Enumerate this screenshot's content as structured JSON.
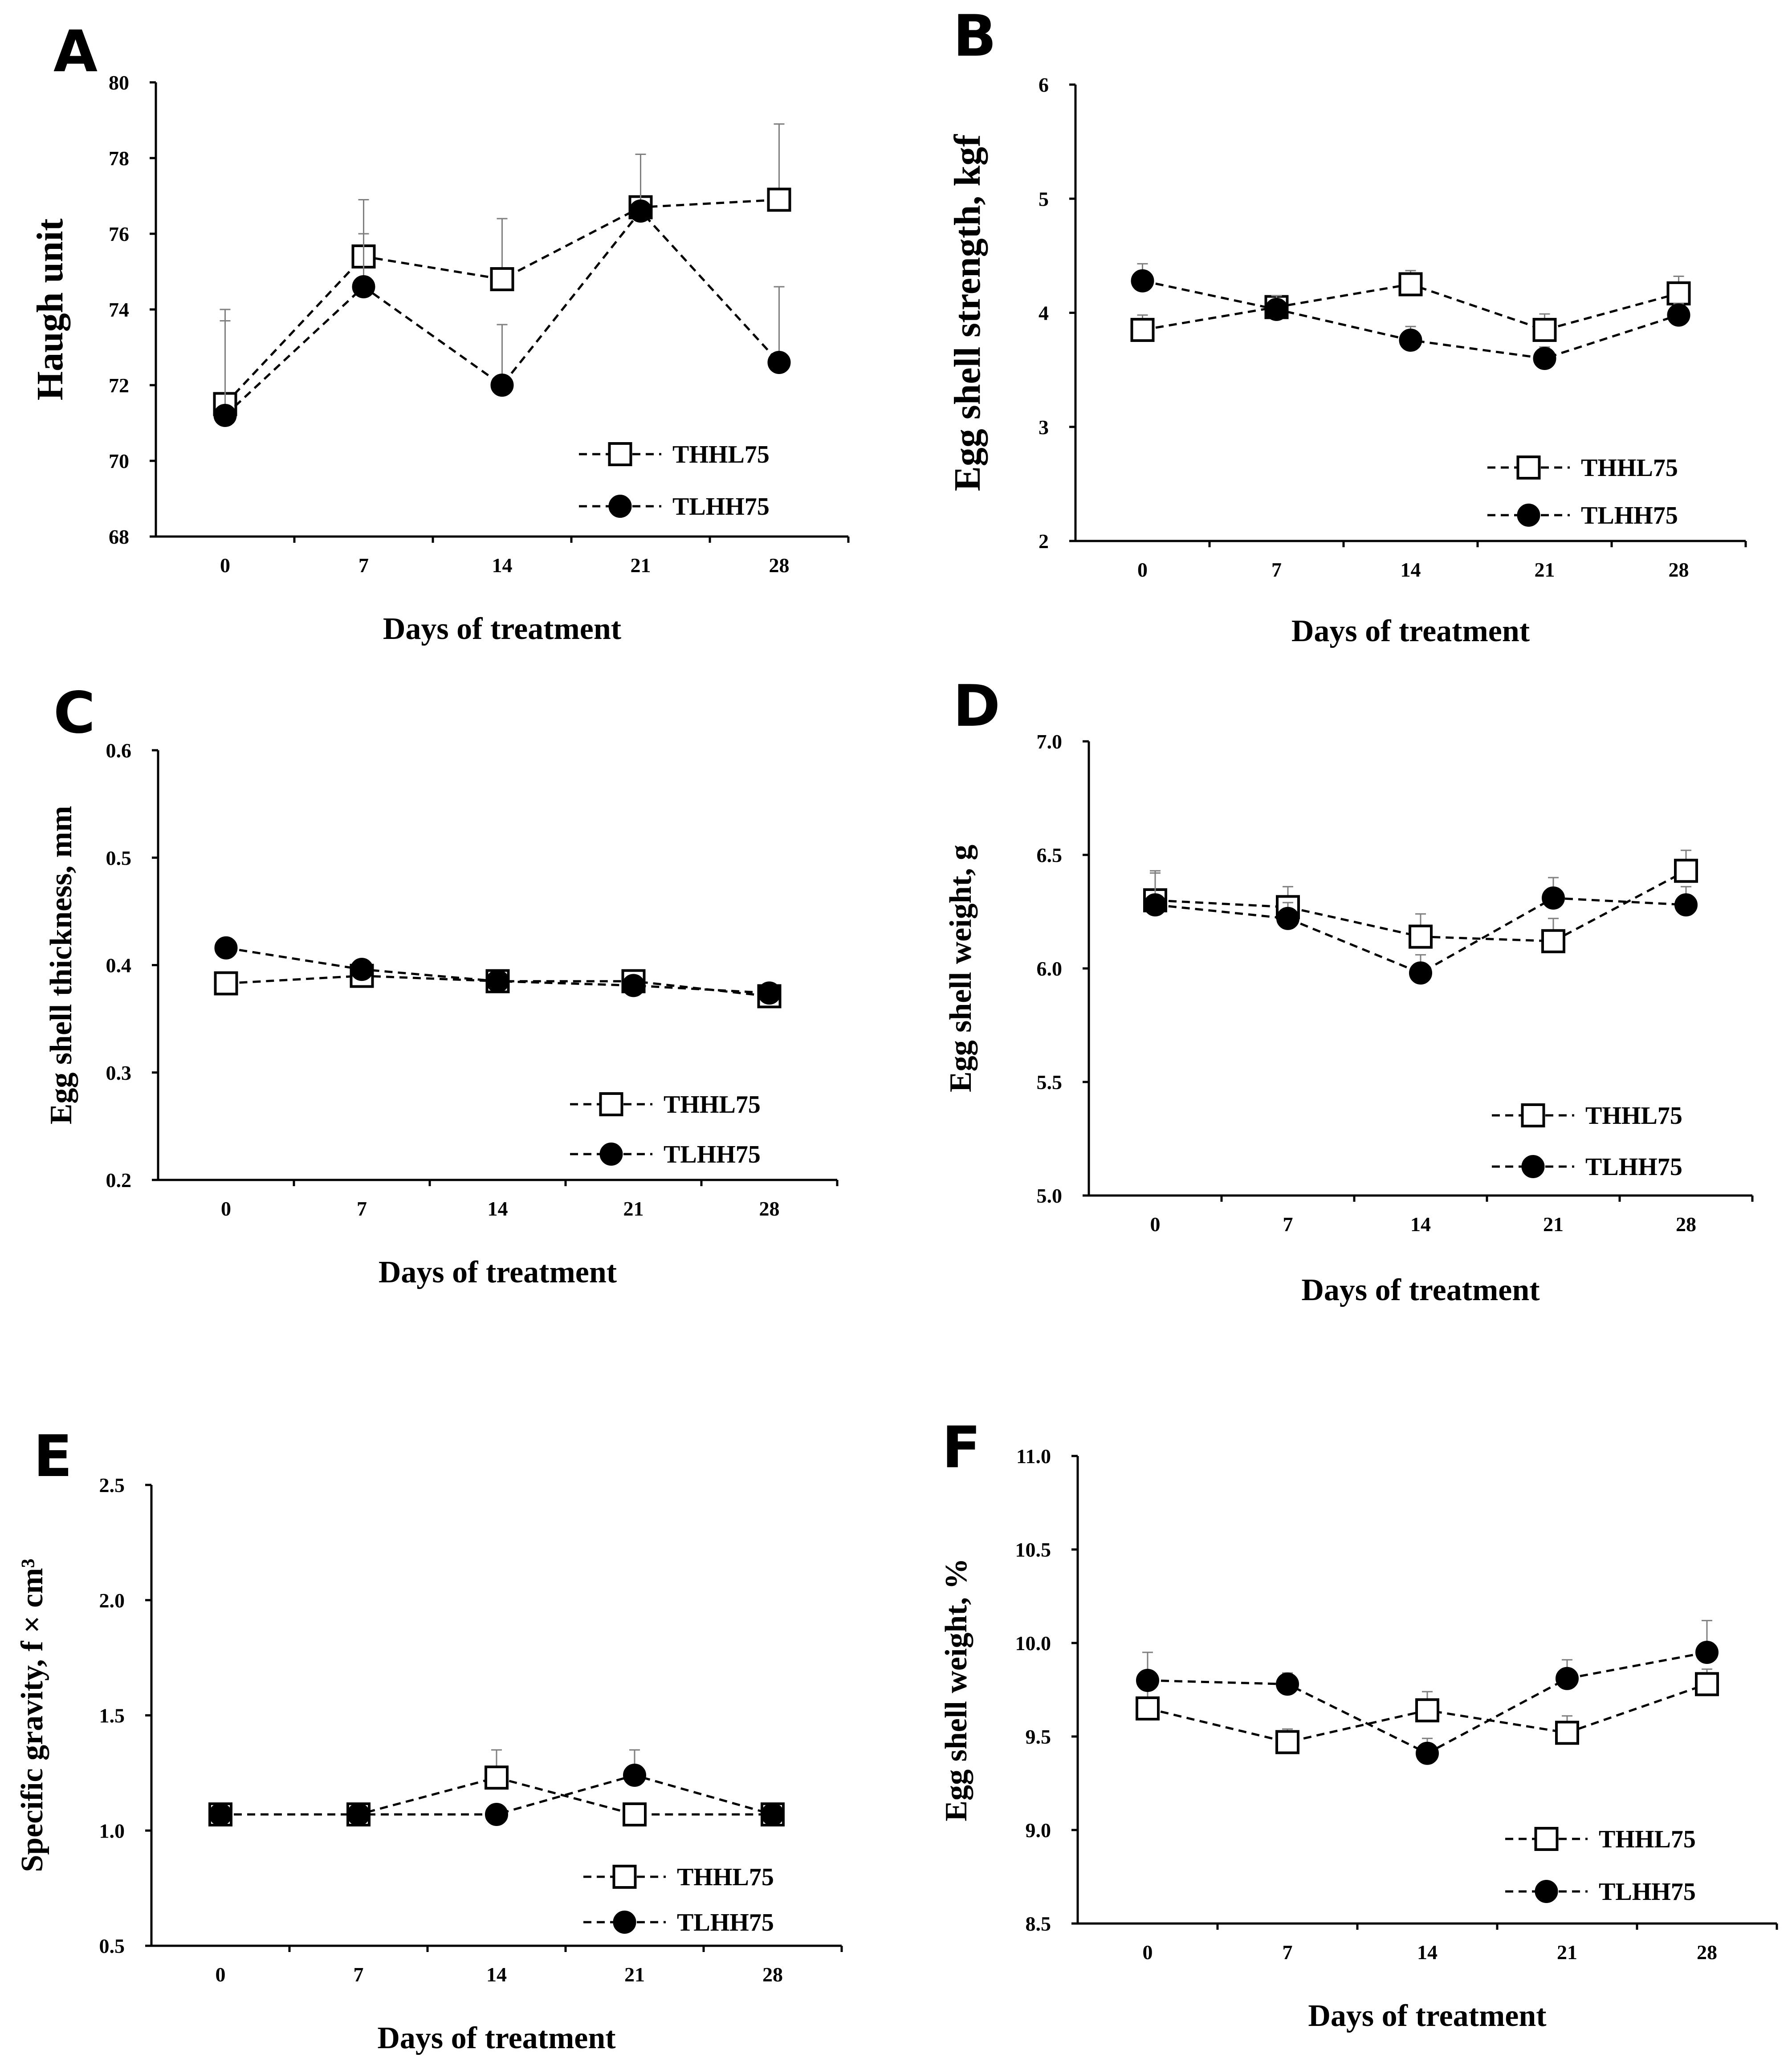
{
  "chart_data": [
    {
      "panel": "A",
      "type": "line",
      "xlabel": "Days of treatment",
      "ylabel": "Haugh unit",
      "categories": [
        "0",
        "7",
        "14",
        "21",
        "28"
      ],
      "ylim": [
        68,
        80
      ],
      "yticks": [
        "68",
        "70",
        "72",
        "74",
        "76",
        "78",
        "80"
      ],
      "legend_position": "bottom-right",
      "series": [
        {
          "name": "THHL75",
          "marker": "open-square",
          "values": [
            71.5,
            75.4,
            74.8,
            76.7,
            76.9
          ],
          "errors": [
            2.5,
            1.5,
            1.6,
            1.4,
            2.0
          ]
        },
        {
          "name": "TLHH75",
          "marker": "filled-circle",
          "values": [
            71.2,
            74.6,
            72.0,
            76.6,
            72.6
          ],
          "errors": [
            2.5,
            1.4,
            1.6,
            1.5,
            2.0
          ]
        }
      ]
    },
    {
      "panel": "B",
      "type": "line",
      "xlabel": "Days of treatment",
      "ylabel": "Egg shell strength, kgf",
      "categories": [
        "0",
        "7",
        "14",
        "21",
        "28"
      ],
      "ylim": [
        2,
        6
      ],
      "yticks": [
        "2",
        "3",
        "4",
        "5",
        "6"
      ],
      "legend_position": "bottom-right",
      "series": [
        {
          "name": "THHL75",
          "marker": "open-square",
          "values": [
            3.85,
            4.05,
            4.25,
            3.85,
            4.17
          ],
          "errors": [
            0.13,
            0.1,
            0.12,
            0.14,
            0.15
          ]
        },
        {
          "name": "TLHH75",
          "marker": "filled-circle",
          "values": [
            4.28,
            4.03,
            3.76,
            3.6,
            3.98
          ],
          "errors": [
            0.15,
            0.12,
            0.12,
            0.1,
            0.1
          ]
        }
      ]
    },
    {
      "panel": "C",
      "type": "line",
      "xlabel": "Days of treatment",
      "ylabel": "Egg shell thickness, mm",
      "categories": [
        "0",
        "7",
        "14",
        "21",
        "28"
      ],
      "ylim": [
        0.2,
        0.6
      ],
      "yticks": [
        "0.2",
        "0.3",
        "0.4",
        "0.5",
        "0.6"
      ],
      "legend_position": "bottom-right",
      "series": [
        {
          "name": "THHL75",
          "marker": "open-square",
          "values": [
            0.383,
            0.39,
            0.385,
            0.385,
            0.371
          ],
          "errors": [
            0.004,
            0.004,
            0.004,
            0.004,
            0.004
          ]
        },
        {
          "name": "TLHH75",
          "marker": "filled-circle",
          "values": [
            0.416,
            0.396,
            0.385,
            0.381,
            0.374
          ],
          "errors": [
            0.004,
            0.004,
            0.004,
            0.004,
            0.004
          ]
        }
      ]
    },
    {
      "panel": "D",
      "type": "line",
      "xlabel": "Days of treatment",
      "ylabel": "Egg shell weight, g",
      "categories": [
        "0",
        "7",
        "14",
        "21",
        "28"
      ],
      "ylim": [
        5.0,
        7.0
      ],
      "yticks": [
        "5.0",
        "5.5",
        "6.0",
        "6.5",
        "7.0"
      ],
      "legend_position": "bottom-right",
      "series": [
        {
          "name": "THHL75",
          "marker": "open-square",
          "values": [
            6.3,
            6.27,
            6.14,
            6.12,
            6.43
          ],
          "errors": [
            0.13,
            0.09,
            0.1,
            0.1,
            0.09
          ]
        },
        {
          "name": "TLHH75",
          "marker": "filled-circle",
          "values": [
            6.28,
            6.22,
            5.98,
            6.31,
            6.28
          ],
          "errors": [
            0.14,
            0.07,
            0.08,
            0.09,
            0.08
          ]
        }
      ]
    },
    {
      "panel": "E",
      "type": "line",
      "xlabel": "Days of treatment",
      "ylabel": "Specific gravity, f × cm³",
      "categories": [
        "0",
        "7",
        "14",
        "21",
        "28"
      ],
      "ylim": [
        0.5,
        2.5
      ],
      "yticks": [
        "0.5",
        "1.0",
        "1.5",
        "2.0",
        "2.5"
      ],
      "legend_position": "bottom-right",
      "series": [
        {
          "name": "THHL75",
          "marker": "open-square",
          "values": [
            1.07,
            1.07,
            1.23,
            1.07,
            1.07
          ],
          "errors": [
            0.01,
            0.01,
            0.12,
            0.01,
            0.01
          ]
        },
        {
          "name": "TLHH75",
          "marker": "filled-circle",
          "values": [
            1.07,
            1.07,
            1.07,
            1.24,
            1.07
          ],
          "errors": [
            0.01,
            0.01,
            0.01,
            0.11,
            0.01
          ]
        }
      ]
    },
    {
      "panel": "F",
      "type": "line",
      "xlabel": "Days of treatment",
      "ylabel": "Egg shell weight, %",
      "categories": [
        "0",
        "7",
        "14",
        "21",
        "28"
      ],
      "ylim": [
        8.5,
        11.0
      ],
      "yticks": [
        "8.5",
        "9.0",
        "9.5",
        "10.0",
        "10.5",
        "11.0"
      ],
      "legend_position": "bottom-right",
      "series": [
        {
          "name": "THHL75",
          "marker": "open-square",
          "values": [
            9.65,
            9.47,
            9.64,
            9.52,
            9.78
          ],
          "errors": [
            0.1,
            0.07,
            0.1,
            0.09,
            0.08
          ]
        },
        {
          "name": "TLHH75",
          "marker": "filled-circle",
          "values": [
            9.8,
            9.78,
            9.41,
            9.81,
            9.95
          ],
          "errors": [
            0.15,
            0.06,
            0.08,
            0.1,
            0.17
          ]
        }
      ]
    }
  ]
}
